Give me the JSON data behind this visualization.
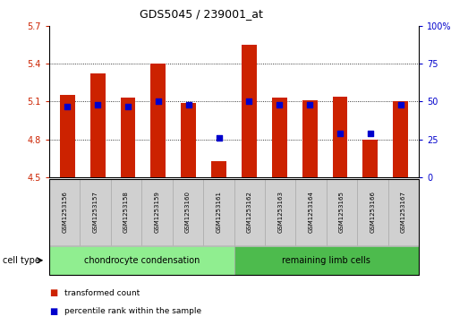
{
  "title": "GDS5045 / 239001_at",
  "samples": [
    "GSM1253156",
    "GSM1253157",
    "GSM1253158",
    "GSM1253159",
    "GSM1253160",
    "GSM1253161",
    "GSM1253162",
    "GSM1253163",
    "GSM1253164",
    "GSM1253165",
    "GSM1253166",
    "GSM1253167"
  ],
  "transformed_count": [
    5.15,
    5.32,
    5.13,
    5.4,
    5.09,
    4.63,
    5.55,
    5.13,
    5.11,
    5.14,
    4.8,
    5.1
  ],
  "percentile_rank": [
    47,
    48,
    47,
    50,
    48,
    26,
    50,
    48,
    48,
    29,
    29,
    48
  ],
  "bar_color": "#cc2200",
  "dot_color": "#0000cc",
  "baseline": 4.5,
  "ylim_left": [
    4.5,
    5.7
  ],
  "ylim_right": [
    0,
    100
  ],
  "yticks_left": [
    4.5,
    4.8,
    5.1,
    5.4,
    5.7
  ],
  "yticks_left_labels": [
    "4.5",
    "4.8",
    "5.1",
    "5.4",
    "5.7"
  ],
  "yticks_right": [
    0,
    25,
    50,
    75,
    100
  ],
  "yticks_right_labels": [
    "0",
    "25",
    "50",
    "75",
    "100%"
  ],
  "grid_ticks": [
    4.8,
    5.1,
    5.4
  ],
  "group1_label": "chondrocyte condensation",
  "group2_label": "remaining limb cells",
  "group1_color": "#90ee90",
  "group2_color": "#4dbb4d",
  "cell_type_label": "cell type",
  "legend_bar_label": "transformed count",
  "legend_dot_label": "percentile rank within the sample",
  "bar_width": 0.5,
  "background_color": "#ffffff",
  "tick_label_area_color": "#d0d0d0",
  "left_tick_color": "#cc2200",
  "right_tick_color": "#0000cc"
}
